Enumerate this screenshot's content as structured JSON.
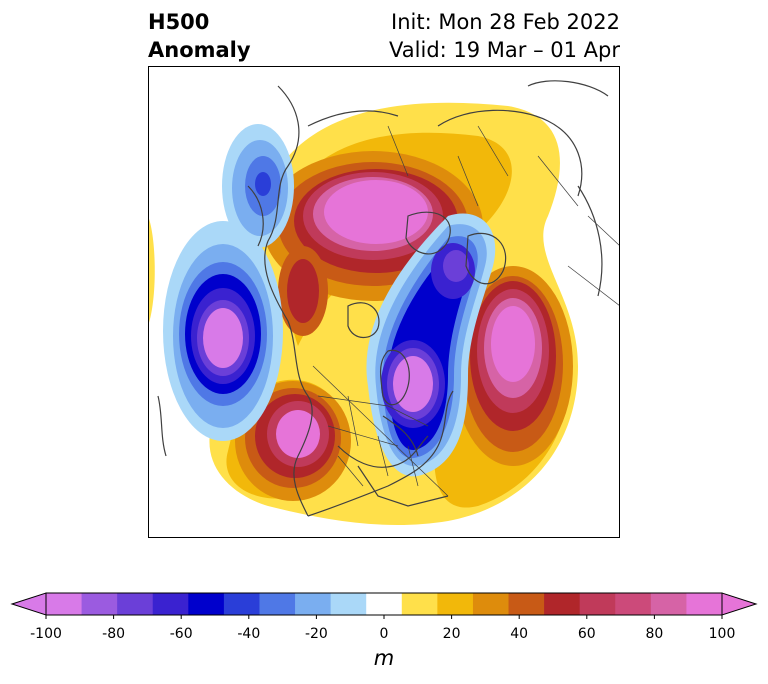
{
  "title": {
    "left_line1": "H500",
    "left_line2": "Anomaly",
    "right_line1": "Init: Mon 28 Feb 2022",
    "right_line2": "Valid: 19 Mar – 01 Apr"
  },
  "colorbar": {
    "unit": "m",
    "levels": [
      -100,
      -90,
      -80,
      -70,
      -60,
      -50,
      -40,
      -30,
      -20,
      -10,
      10,
      20,
      30,
      40,
      50,
      60,
      70,
      80,
      90,
      100
    ],
    "ticks": [
      "-100",
      "-80",
      "-60",
      "-40",
      "-20",
      "0",
      "20",
      "40",
      "60",
      "80",
      "100"
    ],
    "colors": [
      "#d87ae8",
      "#9b5be0",
      "#6b3fd8",
      "#3a22d0",
      "#0000cc",
      "#2a3ed8",
      "#4f78e6",
      "#7aaef0",
      "#aad8f8",
      "#ffffff",
      "#ffe04a",
      "#f2b80a",
      "#de8c0c",
      "#c85a16",
      "#b0262a",
      "#c03a5a",
      "#cc4a7a",
      "#d663a6",
      "#e674d8"
    ]
  },
  "map": {
    "projection": "north-polar-stereographic",
    "anomaly_centers": [
      {
        "name": "north pacific low",
        "sign": "negative",
        "peak": -100
      },
      {
        "name": "eastern north america low",
        "sign": "negative",
        "peak": -100
      },
      {
        "name": "siberian low",
        "sign": "negative",
        "peak": -90
      },
      {
        "name": "aleutian area low",
        "sign": "negative",
        "peak": -70
      },
      {
        "name": "arctic ridge",
        "sign": "positive",
        "peak": 100
      },
      {
        "name": "western us ridge",
        "sign": "positive",
        "peak": 90
      },
      {
        "name": "north atlantic ridge",
        "sign": "positive",
        "peak": 100
      }
    ]
  }
}
